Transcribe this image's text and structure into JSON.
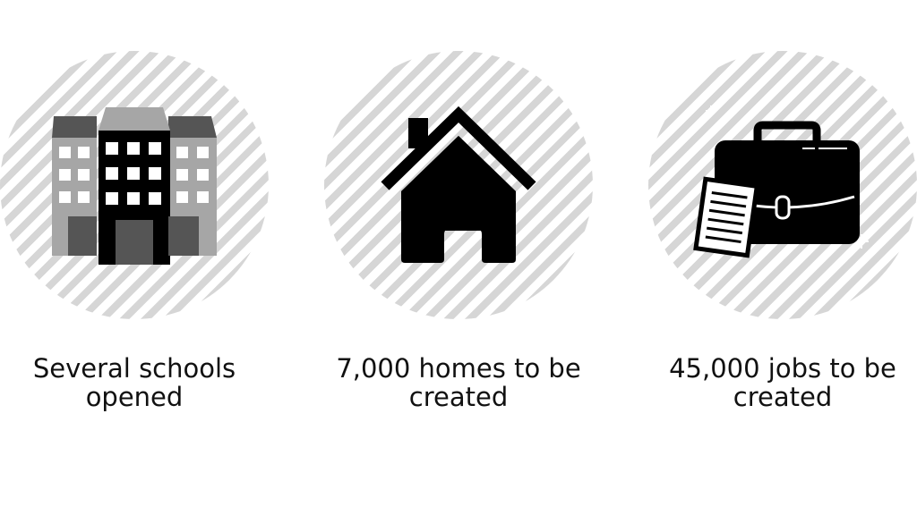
{
  "stats": [
    {
      "icon": "school-building-icon",
      "caption": "Several schools opened"
    },
    {
      "icon": "house-icon",
      "caption": "7,000 homes to be created"
    },
    {
      "icon": "briefcase-icon",
      "caption": "45,000 jobs to be created"
    }
  ],
  "colors": {
    "stripe": "#d6d6d6",
    "icon_dark": "#000000",
    "icon_mid": "#555555",
    "icon_light": "#a6a6a6"
  }
}
